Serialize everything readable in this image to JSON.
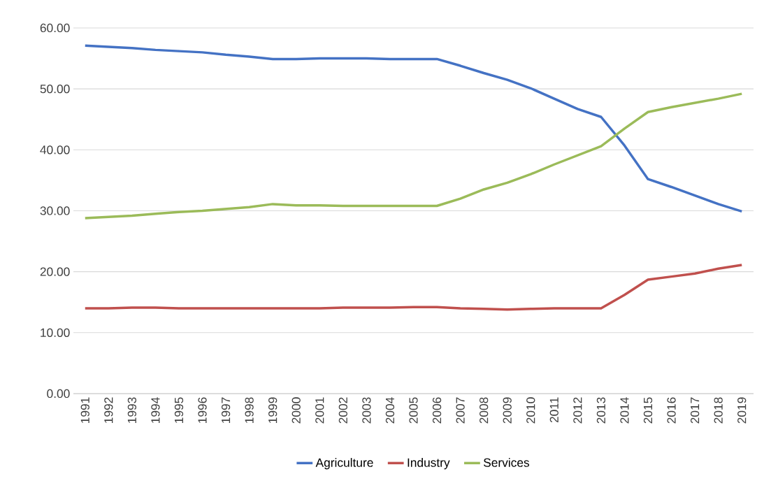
{
  "chart_data": {
    "type": "line",
    "categories": [
      "1991",
      "1992",
      "1993",
      "1994",
      "1995",
      "1996",
      "1997",
      "1998",
      "1999",
      "2000",
      "2001",
      "2002",
      "2003",
      "2004",
      "2005",
      "2006",
      "2007",
      "2008",
      "2009",
      "2010",
      "2011",
      "2012",
      "2013",
      "2014",
      "2015",
      "2016",
      "2017",
      "2018",
      "2019"
    ],
    "series": [
      {
        "name": "Agriculture",
        "color": "#4472c4",
        "values": [
          57.1,
          56.9,
          56.7,
          56.4,
          56.2,
          56.0,
          55.6,
          55.3,
          54.9,
          54.9,
          55.0,
          55.0,
          55.0,
          54.9,
          54.9,
          54.9,
          53.8,
          52.6,
          51.5,
          50.1,
          48.4,
          46.7,
          45.4,
          40.7,
          35.2,
          33.9,
          32.5,
          31.1,
          29.9
        ]
      },
      {
        "name": "Industry",
        "color": "#c0504d",
        "values": [
          14.0,
          14.0,
          14.1,
          14.1,
          14.0,
          14.0,
          14.0,
          14.0,
          14.0,
          14.0,
          14.0,
          14.1,
          14.1,
          14.1,
          14.2,
          14.2,
          14.0,
          13.9,
          13.8,
          13.9,
          14.0,
          14.0,
          14.0,
          16.2,
          18.7,
          19.2,
          19.7,
          20.5,
          21.1
        ]
      },
      {
        "name": "Services",
        "color": "#9bbb59",
        "values": [
          28.8,
          29.0,
          29.2,
          29.5,
          29.8,
          30.0,
          30.3,
          30.6,
          31.1,
          30.9,
          30.9,
          30.8,
          30.8,
          30.8,
          30.8,
          30.8,
          32.0,
          33.5,
          34.6,
          36.0,
          37.6,
          39.1,
          40.6,
          43.5,
          46.2,
          47.0,
          47.7,
          48.4,
          49.2
        ]
      }
    ],
    "ylim": [
      0,
      60
    ],
    "yticks": [
      {
        "value": 0,
        "label": "0.00"
      },
      {
        "value": 10,
        "label": "10.00"
      },
      {
        "value": 20,
        "label": "20.00"
      },
      {
        "value": 30,
        "label": "30.00"
      },
      {
        "value": 40,
        "label": "40.00"
      },
      {
        "value": 50,
        "label": "50.00"
      },
      {
        "value": 60,
        "label": "60.00"
      }
    ],
    "grid": "y",
    "legend": "bottom",
    "marker": "none",
    "line_style": "solid"
  }
}
